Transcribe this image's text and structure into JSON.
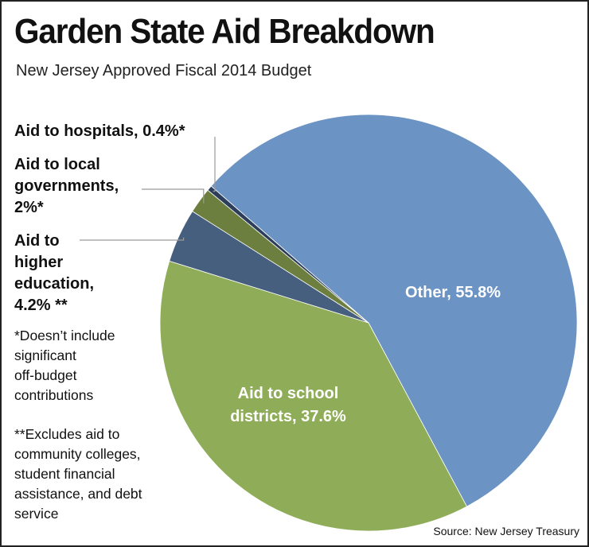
{
  "title": "Garden State Aid Breakdown",
  "subtitle": "New Jersey Approved Fiscal 2014 Budget",
  "source": "Source: New Jersey Treasury",
  "notes": {
    "single_star": "*Doesn’t include\nsignificant\noff-budget\ncontributions",
    "double_star": "**Excludes aid to\ncommunity colleges,\nstudent financial\nassistance, and debt\nservice"
  },
  "chart_data": {
    "type": "pie",
    "title": "Garden State Aid Breakdown",
    "subtitle": "New Jersey Approved Fiscal 2014 Budget",
    "unit": "%",
    "slices": [
      {
        "key": "other",
        "label": "Other, 55.8%",
        "value": 55.8,
        "color": "#6b93c3"
      },
      {
        "key": "school",
        "label": "Aid to school\ndistricts, 37.6%",
        "value": 37.6,
        "color": "#8fad58"
      },
      {
        "key": "higher_ed",
        "label": "Aid to\nhigher\neducation,\n4.2% **",
        "value": 4.2,
        "color": "#475f7f"
      },
      {
        "key": "local_gov",
        "label": "Aid to local\ngovernments,\n2%*",
        "value": 2.0,
        "color": "#6d7f3e"
      },
      {
        "key": "hospitals",
        "label": "Aid to hospitals, 0.4%*",
        "value": 0.4,
        "color": "#2c3e5a"
      }
    ]
  }
}
